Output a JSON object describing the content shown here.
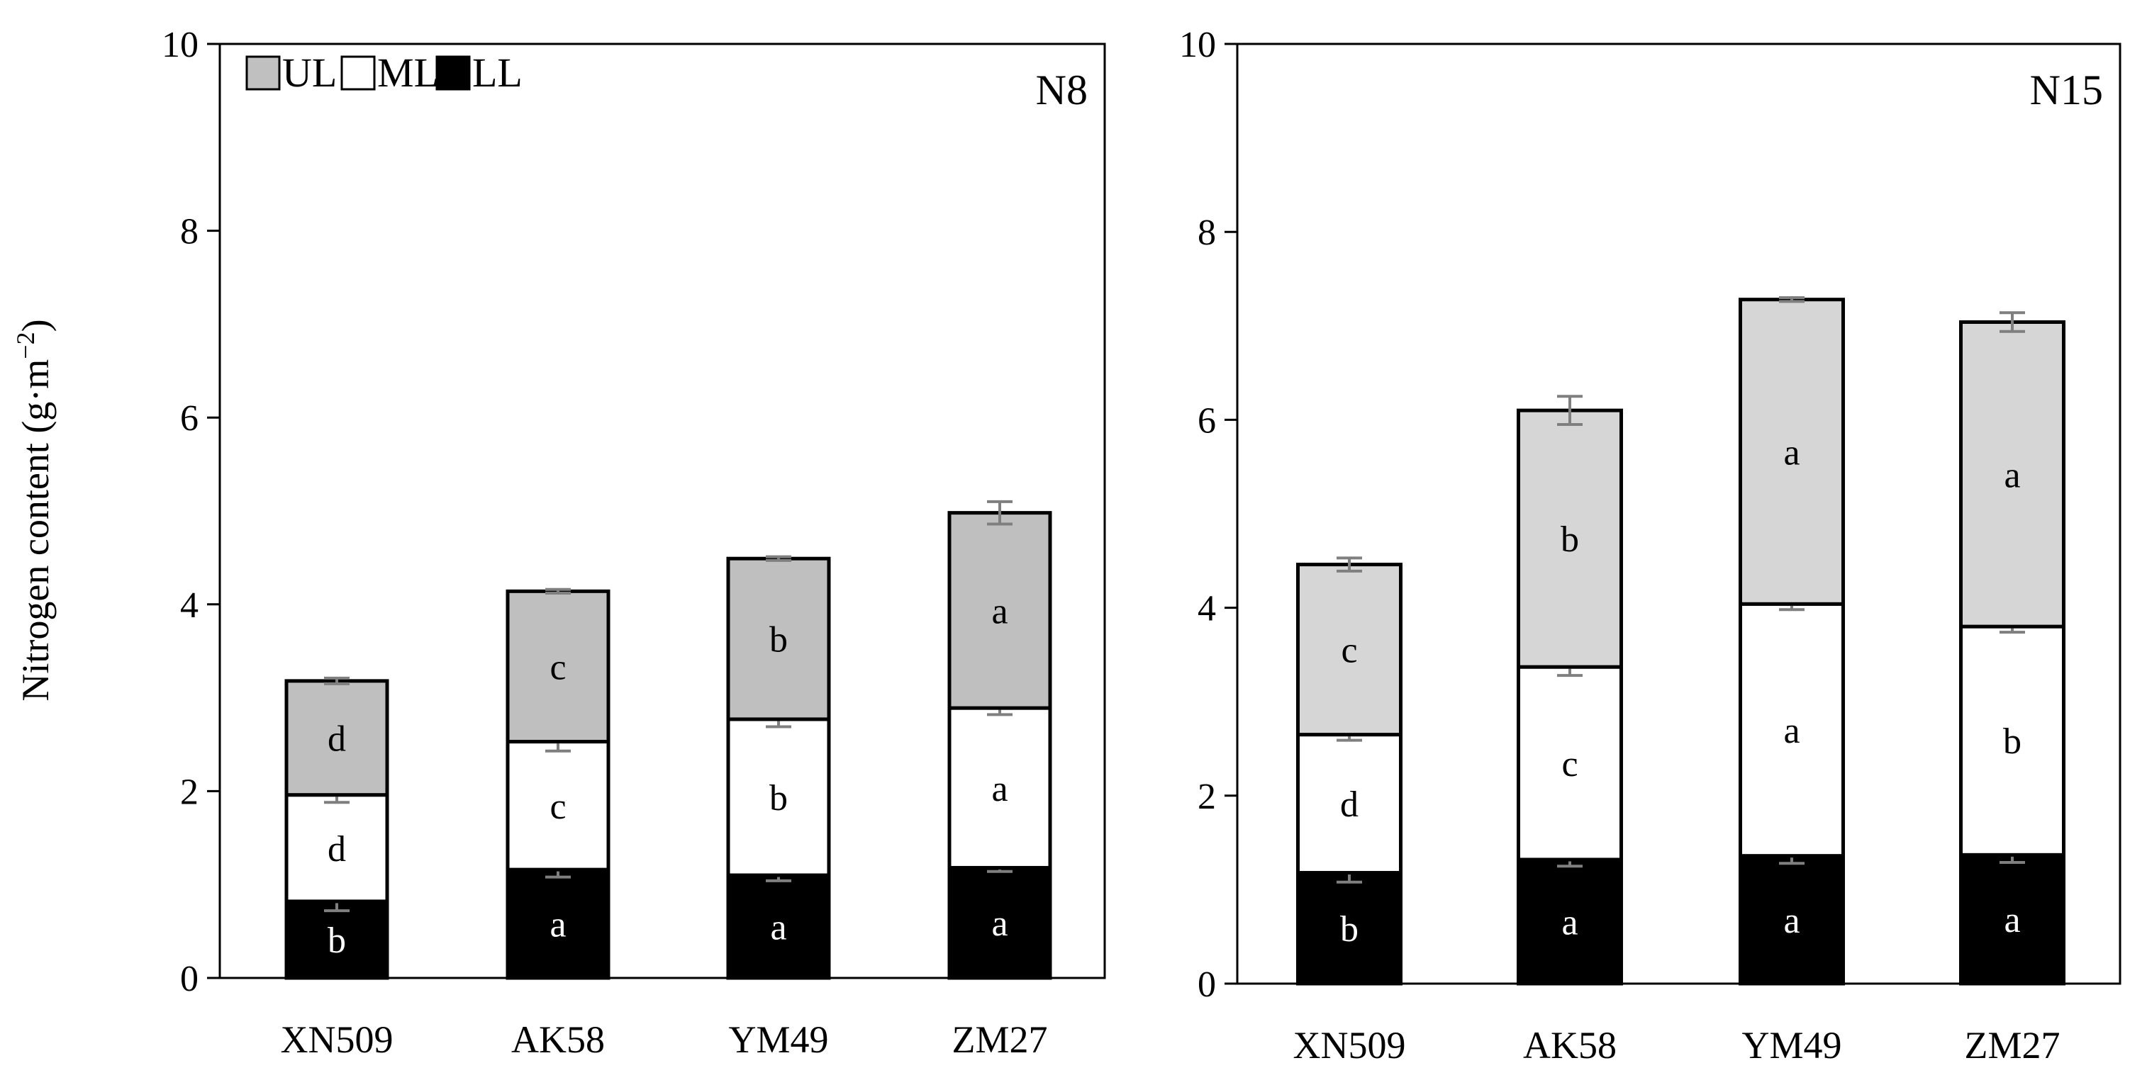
{
  "chart_data": {
    "type": "stacked-bar",
    "ylabel": "Nitrogen content (g·m",
    "ylabel_sup": "−2",
    "ylabel_close": ")",
    "ylim": [
      0,
      10
    ],
    "yticks": [
      "0",
      "2",
      "4",
      "6",
      "8",
      "10"
    ],
    "categories": [
      "XN509",
      "AK58",
      "YM49",
      "ZM27"
    ],
    "legend": [
      {
        "key": "UL",
        "label": "UL",
        "color": "#c0c0c0"
      },
      {
        "key": "ML",
        "label": "ML",
        "color": "#ffffff"
      },
      {
        "key": "LL",
        "label": "LL",
        "color": "#000000"
      }
    ],
    "panels": [
      {
        "title": "N8",
        "show_legend": true,
        "ul_color": "#bfbfbf",
        "series": [
          {
            "name": "LL",
            "values": [
              0.82,
              1.16,
              1.1,
              1.18
            ],
            "errors": [
              0.1,
              0.08,
              0.06,
              0.04
            ],
            "letters": [
              "b",
              "a",
              "a",
              "a"
            ]
          },
          {
            "name": "ML",
            "values": [
              1.14,
              1.37,
              1.67,
              1.71
            ],
            "errors": [
              0.08,
              0.1,
              0.08,
              0.07
            ],
            "letters": [
              "d",
              "c",
              "b",
              "a"
            ]
          },
          {
            "name": "UL",
            "values": [
              1.22,
              1.61,
              1.72,
              2.09
            ],
            "errors": [
              0.03,
              0.02,
              0.02,
              0.12
            ],
            "letters": [
              "d",
              "c",
              "b",
              "a"
            ]
          }
        ]
      },
      {
        "title": "N15",
        "show_legend": false,
        "ul_color": "#d6d6d6",
        "series": [
          {
            "name": "LL",
            "values": [
              1.18,
              1.32,
              1.36,
              1.37
            ],
            "errors": [
              0.1,
              0.07,
              0.08,
              0.08
            ],
            "letters": [
              "b",
              "a",
              "a",
              "a"
            ]
          },
          {
            "name": "ML",
            "values": [
              1.47,
              2.05,
              2.68,
              2.43
            ],
            "errors": [
              0.06,
              0.09,
              0.06,
              0.06
            ],
            "letters": [
              "d",
              "c",
              "a",
              "b"
            ]
          },
          {
            "name": "UL",
            "values": [
              1.81,
              2.73,
              3.24,
              3.24
            ],
            "errors": [
              0.07,
              0.15,
              0.02,
              0.1
            ],
            "letters": [
              "c",
              "b",
              "a",
              "a"
            ]
          }
        ]
      }
    ]
  }
}
